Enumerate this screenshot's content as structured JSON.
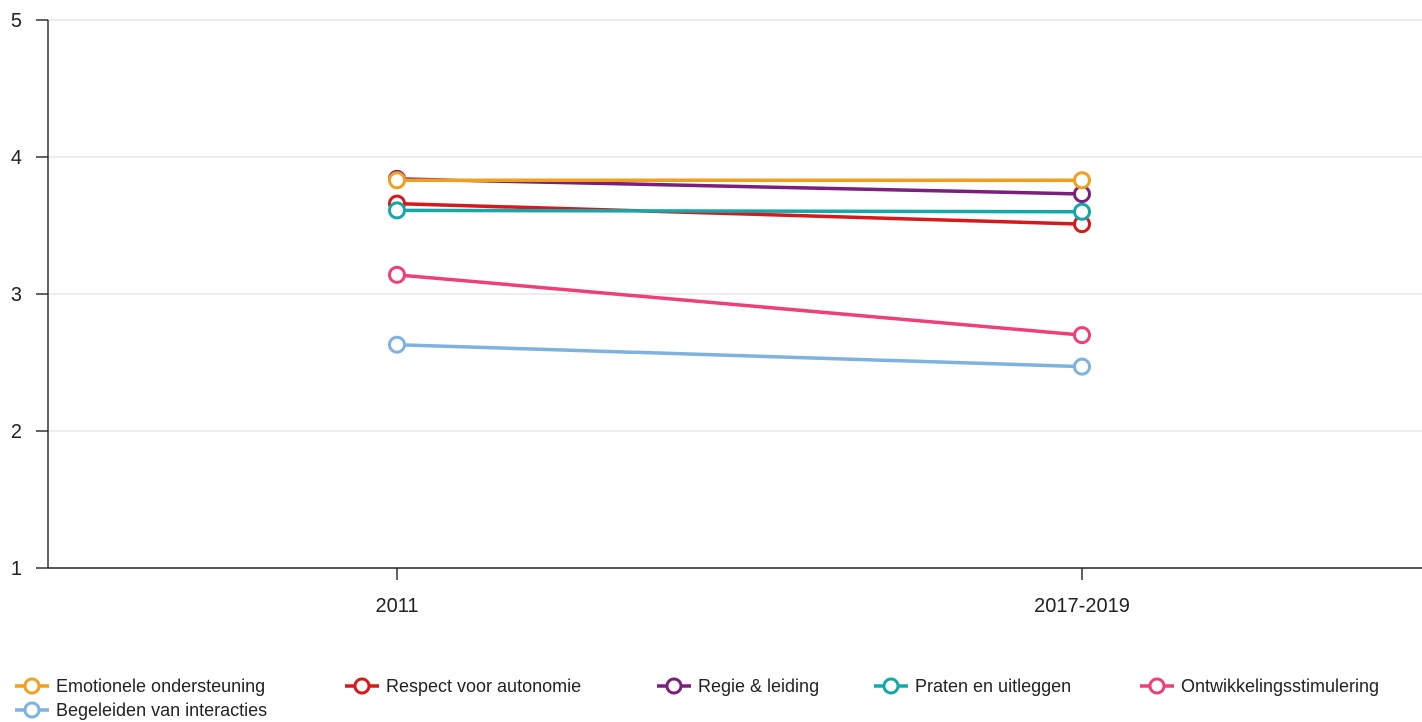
{
  "chart_data": {
    "type": "line",
    "x": [
      "2011",
      "2017-2019"
    ],
    "ylim": [
      1,
      5
    ],
    "yticks": [
      1,
      2,
      3,
      4,
      5
    ],
    "grid": true,
    "legend_position": "bottom",
    "series": [
      {
        "name": "Emotionele ondersteuning",
        "color": "#f0a01e",
        "values": [
          3.83,
          3.83
        ]
      },
      {
        "name": "Respect voor autonomie",
        "color": "#d7191c",
        "values": [
          3.66,
          3.51
        ]
      },
      {
        "name": "Regie & leiding",
        "color": "#7b1f7d",
        "values": [
          3.84,
          3.73
        ]
      },
      {
        "name": "Praten en uitleggen",
        "color": "#16a8a8",
        "values": [
          3.61,
          3.6
        ]
      },
      {
        "name": "Ontwikkelingsstimulering",
        "color": "#ef3f79",
        "values": [
          3.14,
          2.7
        ]
      },
      {
        "name": "Begeleiden van interacties",
        "color": "#7eb2e0",
        "values": [
          2.63,
          2.47
        ]
      }
    ]
  }
}
